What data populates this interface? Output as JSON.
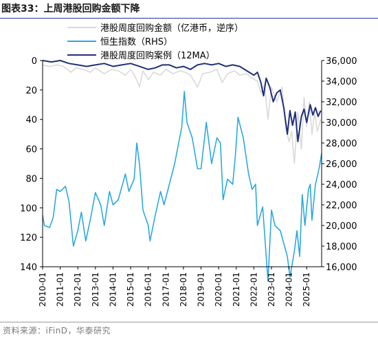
{
  "title": {
    "prefix": "图表33：",
    "text": "上周港股回购金额下降"
  },
  "source": "资料来源：iFinD，华泰研究",
  "chart_data": {
    "type": "line",
    "left_axis": {
      "ticks": [
        0,
        20,
        40,
        60,
        80,
        100,
        120,
        140
      ],
      "range": [
        0,
        140
      ],
      "inverted": true
    },
    "right_axis": {
      "ticks": [
        "16,000",
        "18,000",
        "20,000",
        "22,000",
        "24,000",
        "26,000",
        "28,000",
        "30,000",
        "32,000",
        "34,000",
        "36,000"
      ],
      "range": [
        16000,
        36000
      ]
    },
    "x_ticks": [
      "2010-01",
      "2011-01",
      "2012-01",
      "2013-01",
      "2014-01",
      "2015-01",
      "2016-01",
      "2017-01",
      "2018-01",
      "2019-01",
      "2020-01",
      "2021-01",
      "2022-01",
      "2023-01",
      "2024-01",
      "2025-01"
    ],
    "x_range": [
      2010.0,
      2025.85
    ],
    "grid": false,
    "legend_position": "top",
    "series": [
      {
        "name": "港股周度回购金额（亿港币，逆序）",
        "axis": "left",
        "color": "#d9d9d9",
        "points": [
          [
            2010.0,
            3
          ],
          [
            2010.4,
            4
          ],
          [
            2010.8,
            3
          ],
          [
            2011.2,
            4
          ],
          [
            2011.6,
            8
          ],
          [
            2011.9,
            5
          ],
          [
            2012.3,
            6
          ],
          [
            2012.7,
            8
          ],
          [
            2013.0,
            5
          ],
          [
            2013.5,
            9
          ],
          [
            2013.9,
            6
          ],
          [
            2014.3,
            7
          ],
          [
            2014.7,
            10
          ],
          [
            2015.0,
            6
          ],
          [
            2015.3,
            12
          ],
          [
            2015.5,
            18
          ],
          [
            2015.7,
            7
          ],
          [
            2016.0,
            13
          ],
          [
            2016.3,
            8
          ],
          [
            2016.7,
            10
          ],
          [
            2017.0,
            6
          ],
          [
            2017.4,
            9
          ],
          [
            2017.8,
            7
          ],
          [
            2018.1,
            8
          ],
          [
            2018.4,
            10
          ],
          [
            2018.8,
            18
          ],
          [
            2019.1,
            9
          ],
          [
            2019.5,
            8
          ],
          [
            2019.9,
            6
          ],
          [
            2020.2,
            15
          ],
          [
            2020.5,
            9
          ],
          [
            2020.9,
            7
          ],
          [
            2021.2,
            10
          ],
          [
            2021.6,
            9
          ],
          [
            2021.9,
            12
          ],
          [
            2022.2,
            14
          ],
          [
            2022.4,
            22
          ],
          [
            2022.6,
            16
          ],
          [
            2022.8,
            40
          ],
          [
            2023.0,
            18
          ],
          [
            2023.3,
            28
          ],
          [
            2023.6,
            18
          ],
          [
            2023.8,
            45
          ],
          [
            2024.0,
            55
          ],
          [
            2024.15,
            48
          ],
          [
            2024.3,
            70
          ],
          [
            2024.5,
            35
          ],
          [
            2024.7,
            60
          ],
          [
            2024.85,
            25
          ],
          [
            2025.0,
            45
          ],
          [
            2025.15,
            28
          ],
          [
            2025.3,
            50
          ],
          [
            2025.45,
            35
          ],
          [
            2025.6,
            48
          ],
          [
            2025.8,
            40
          ]
        ]
      },
      {
        "name": "恒生指数（RHS）",
        "axis": "right",
        "color": "#2aa9e0",
        "points": [
          [
            2010.0,
            21000
          ],
          [
            2010.1,
            20000
          ],
          [
            2010.4,
            19800
          ],
          [
            2010.6,
            20800
          ],
          [
            2010.8,
            23500
          ],
          [
            2011.0,
            23300
          ],
          [
            2011.3,
            23800
          ],
          [
            2011.5,
            22300
          ],
          [
            2011.75,
            18000
          ],
          [
            2012.0,
            19500
          ],
          [
            2012.2,
            21300
          ],
          [
            2012.45,
            18500
          ],
          [
            2012.7,
            20500
          ],
          [
            2013.0,
            23200
          ],
          [
            2013.3,
            22000
          ],
          [
            2013.5,
            20000
          ],
          [
            2013.8,
            23300
          ],
          [
            2014.0,
            22000
          ],
          [
            2014.3,
            22500
          ],
          [
            2014.7,
            25000
          ],
          [
            2014.9,
            23300
          ],
          [
            2015.2,
            24500
          ],
          [
            2015.35,
            28000
          ],
          [
            2015.5,
            26000
          ],
          [
            2015.7,
            21500
          ],
          [
            2016.0,
            20000
          ],
          [
            2016.1,
            18500
          ],
          [
            2016.4,
            21000
          ],
          [
            2016.7,
            23300
          ],
          [
            2016.9,
            22000
          ],
          [
            2017.2,
            24000
          ],
          [
            2017.5,
            26000
          ],
          [
            2017.9,
            29500
          ],
          [
            2018.05,
            33000
          ],
          [
            2018.2,
            30000
          ],
          [
            2018.5,
            28500
          ],
          [
            2018.8,
            25500
          ],
          [
            2019.0,
            25500
          ],
          [
            2019.3,
            30000
          ],
          [
            2019.6,
            26000
          ],
          [
            2019.9,
            28500
          ],
          [
            2020.1,
            28000
          ],
          [
            2020.25,
            22500
          ],
          [
            2020.5,
            24500
          ],
          [
            2020.8,
            24000
          ],
          [
            2020.95,
            26800
          ],
          [
            2021.1,
            30500
          ],
          [
            2021.4,
            28500
          ],
          [
            2021.7,
            25000
          ],
          [
            2021.9,
            23500
          ],
          [
            2022.1,
            24000
          ],
          [
            2022.2,
            20000
          ],
          [
            2022.5,
            21800
          ],
          [
            2022.8,
            14600
          ],
          [
            2023.0,
            21500
          ],
          [
            2023.2,
            20000
          ],
          [
            2023.5,
            19500
          ],
          [
            2023.9,
            17000
          ],
          [
            2024.05,
            15000
          ],
          [
            2024.3,
            17500
          ],
          [
            2024.45,
            19500
          ],
          [
            2024.6,
            17000
          ],
          [
            2024.75,
            23000
          ],
          [
            2024.9,
            20000
          ],
          [
            2025.1,
            23500
          ],
          [
            2025.2,
            24000
          ],
          [
            2025.3,
            20500
          ],
          [
            2025.5,
            24000
          ],
          [
            2025.7,
            25500
          ],
          [
            2025.85,
            27000
          ]
        ]
      },
      {
        "name": "港股周度回购案例（12MA）",
        "axis": "left",
        "color": "#1f2f7a",
        "points": [
          [
            2010.0,
            0
          ],
          [
            2010.5,
            1
          ],
          [
            2011.0,
            0
          ],
          [
            2011.5,
            2
          ],
          [
            2012.0,
            3
          ],
          [
            2012.5,
            4
          ],
          [
            2013.0,
            3
          ],
          [
            2013.5,
            2
          ],
          [
            2014.0,
            4
          ],
          [
            2014.5,
            3
          ],
          [
            2015.0,
            2
          ],
          [
            2015.5,
            4
          ],
          [
            2016.0,
            6
          ],
          [
            2016.4,
            5
          ],
          [
            2016.8,
            3
          ],
          [
            2017.2,
            3
          ],
          [
            2017.6,
            5
          ],
          [
            2018.0,
            4
          ],
          [
            2018.4,
            6
          ],
          [
            2018.8,
            3
          ],
          [
            2019.2,
            2
          ],
          [
            2019.6,
            3
          ],
          [
            2020.0,
            2
          ],
          [
            2020.4,
            4
          ],
          [
            2020.8,
            3
          ],
          [
            2021.2,
            4
          ],
          [
            2021.6,
            7
          ],
          [
            2022.0,
            10
          ],
          [
            2022.2,
            8
          ],
          [
            2022.4,
            15
          ],
          [
            2022.55,
            24
          ],
          [
            2022.7,
            12
          ],
          [
            2022.9,
            18
          ],
          [
            2023.1,
            28
          ],
          [
            2023.3,
            22
          ],
          [
            2023.5,
            20
          ],
          [
            2023.7,
            32
          ],
          [
            2023.9,
            50
          ],
          [
            2024.05,
            34
          ],
          [
            2024.2,
            44
          ],
          [
            2024.35,
            35
          ],
          [
            2024.5,
            55
          ],
          [
            2024.7,
            38
          ],
          [
            2024.85,
            33
          ],
          [
            2025.0,
            42
          ],
          [
            2025.2,
            30
          ],
          [
            2025.35,
            37
          ],
          [
            2025.5,
            32
          ],
          [
            2025.65,
            38
          ],
          [
            2025.8,
            34
          ]
        ]
      }
    ]
  }
}
